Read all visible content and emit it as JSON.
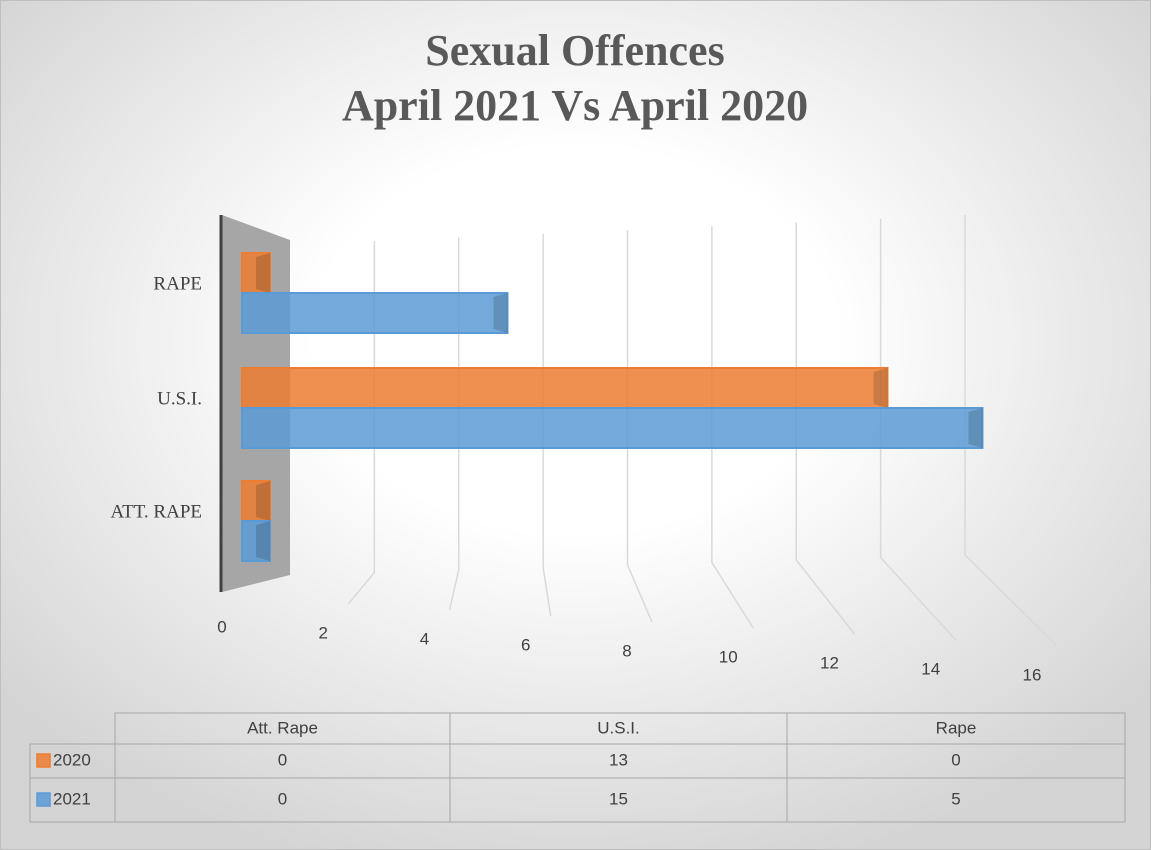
{
  "chart_data": {
    "type": "bar",
    "orientation": "horizontal",
    "title": "Sexual Offences",
    "subtitle": "April 2021 Vs April 2020",
    "categories": [
      "ATT. RAPE",
      "U.S.I.",
      "RAPE"
    ],
    "table_headers": [
      "Att. Rape",
      "U.S.I.",
      "Rape"
    ],
    "series": [
      {
        "name": "2020",
        "color": "#ed7d31",
        "values": [
          0,
          13,
          0
        ]
      },
      {
        "name": "2021",
        "color": "#5b9bd5",
        "values": [
          0,
          15,
          5
        ]
      }
    ],
    "xlim": [
      0,
      16
    ],
    "xticks": [
      0,
      2,
      4,
      6,
      8,
      10,
      12,
      14,
      16
    ],
    "grid": true
  }
}
